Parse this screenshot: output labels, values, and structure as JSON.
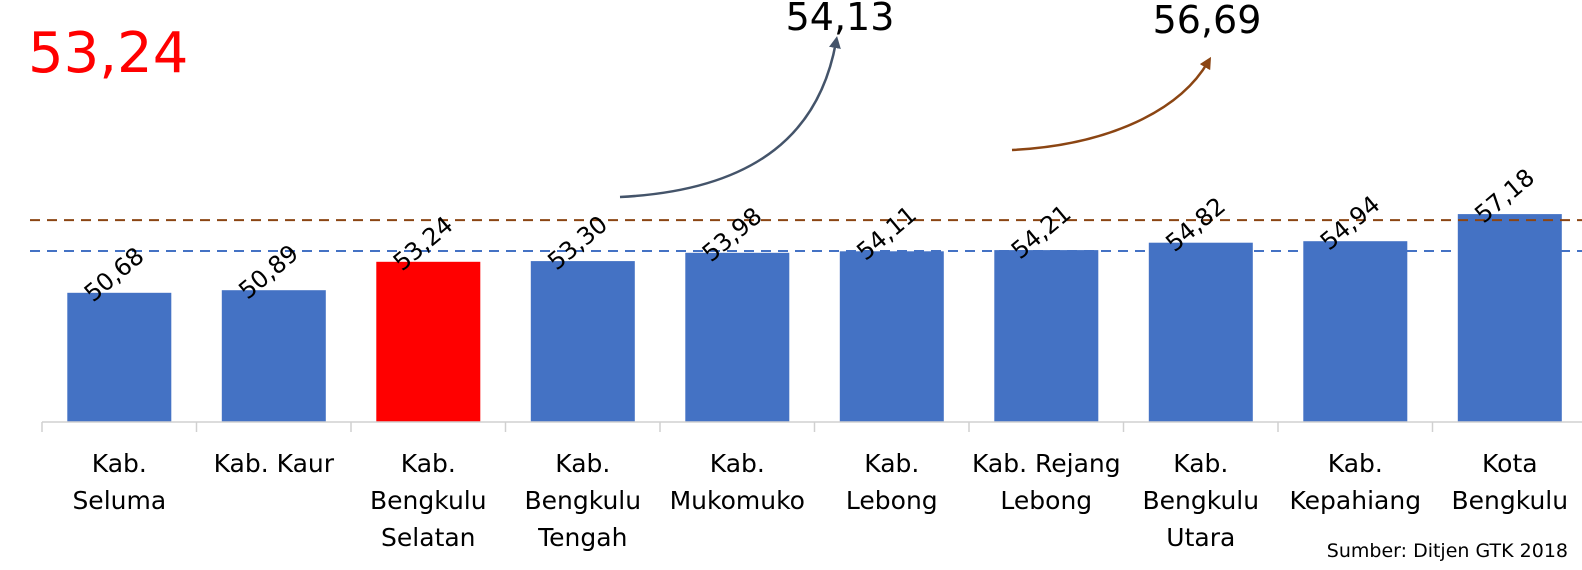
{
  "chart_data": {
    "type": "bar",
    "categories": [
      [
        "Kab.",
        "Seluma"
      ],
      [
        "Kab. Kaur"
      ],
      [
        "Kab.",
        "Bengkulu",
        "Selatan"
      ],
      [
        "Kab.",
        "Bengkulu",
        "Tengah"
      ],
      [
        "Kab.",
        "Mukomuko"
      ],
      [
        "Kab.",
        "Lebong"
      ],
      [
        "Kab. Rejang",
        "Lebong"
      ],
      [
        "Kab.",
        "Bengkulu",
        "Utara"
      ],
      [
        "Kab.",
        "Kepahiang"
      ],
      [
        "Kota",
        "Bengkulu"
      ]
    ],
    "values": [
      50.68,
      50.89,
      53.24,
      53.3,
      53.98,
      54.11,
      54.21,
      54.82,
      54.94,
      57.18
    ],
    "value_labels": [
      "50,68",
      "50,89",
      "53,24",
      "53,30",
      "53,98",
      "54,11",
      "54,21",
      "54,82",
      "54,94",
      "57,18"
    ],
    "highlight_index": 2,
    "colors": {
      "bar": "#4472C4",
      "highlight": "#FF0000",
      "ref_blue": "#4472C4",
      "ref_brown": "#8B4513",
      "arrow_gray": "#44546A",
      "arrow_brown": "#8B4513"
    },
    "reference_lines": [
      {
        "value": 54.13,
        "label": "54,13",
        "color": "blue",
        "style": "dashed"
      },
      {
        "value": 56.69,
        "label": "56,69",
        "color": "brown",
        "style": "dashed"
      }
    ],
    "ylim": [
      40,
      58
    ],
    "grid": false,
    "legend": "none"
  },
  "highlight_label": "53,24",
  "source": "Sumber: Ditjen GTK 2018"
}
